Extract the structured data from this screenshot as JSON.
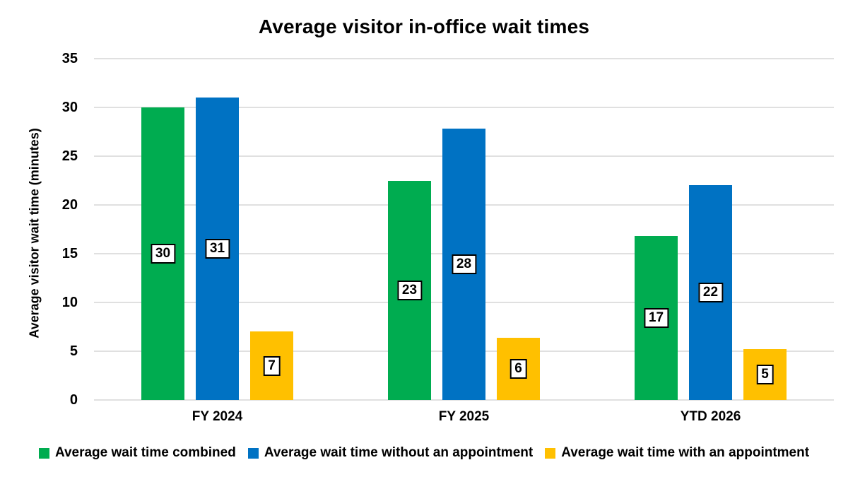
{
  "title": "Average visitor in-office wait times",
  "chart_data": {
    "type": "bar",
    "title": "Average visitor in-office wait times",
    "xlabel": "",
    "ylabel": "Average visitor wait time (minutes)",
    "ylim": [
      0,
      35
    ],
    "yticks": [
      0,
      5,
      10,
      15,
      20,
      25,
      30,
      35
    ],
    "grid": true,
    "gridline_color": "#e0e0e0",
    "legend_position": "bottom",
    "categories": [
      "FY 2024",
      "FY 2025",
      "YTD 2026"
    ],
    "series": [
      {
        "name": "Average wait time combined",
        "color": "#00AC50",
        "values": [
          30,
          22.5,
          16.8
        ],
        "value_labels": [
          "30",
          "23",
          "17"
        ]
      },
      {
        "name": "Average wait time without an appointment",
        "color": "#0072C3",
        "values": [
          31,
          27.8,
          22
        ],
        "value_labels": [
          "31",
          "28",
          "22"
        ]
      },
      {
        "name": "Average wait time with an appointment",
        "color": "#FFC000",
        "values": [
          7,
          6.4,
          5.2
        ],
        "value_labels": [
          "7",
          "6",
          "5"
        ]
      }
    ]
  }
}
